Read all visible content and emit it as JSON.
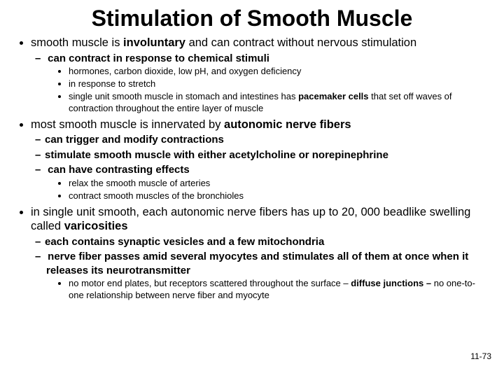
{
  "title": "Stimulation of Smooth Muscle",
  "page_number": "11-73",
  "colors": {
    "background": "#ffffff",
    "text": "#000000"
  },
  "typography": {
    "title_fontsize_pt": 24,
    "lvl1_fontsize_pt": 12,
    "lvl2_fontsize_pt": 11,
    "lvl3_fontsize_pt": 10,
    "font_family": "Arial"
  },
  "b1": {
    "pre": "smooth muscle is ",
    "bold": "involuntary",
    "post": " and can contract without nervous stimulation",
    "s1": "can contract in response to chemical stimuli",
    "s1a": "hormones, carbon dioxide, low pH, and oxygen deficiency",
    "s1b": "in response to stretch",
    "s1c_pre": "single unit smooth muscle in stomach and intestines has ",
    "s1c_bold": "pacemaker cells",
    "s1c_post": " that set off waves of contraction throughout the entire layer of muscle"
  },
  "b2": {
    "pre": "most smooth muscle is innervated by ",
    "bold": "autonomic nerve fibers",
    "s1": "can trigger and modify contractions",
    "s2": "stimulate smooth muscle with either acetylcholine or norepinephrine",
    "s3": "can have contrasting effects",
    "s3a": "relax the smooth muscle of arteries",
    "s3b": "contract smooth muscles of the bronchioles"
  },
  "b3": {
    "pre": "in single unit smooth, each autonomic nerve fibers has up to 20, 000 beadlike swelling called ",
    "bold": "varicosities",
    "s1": "each contains synaptic vesicles and a few mitochondria",
    "s2": "nerve fiber passes amid several myocytes and stimulates all of them at once when it releases its neurotransmitter",
    "s2a_pre": "no motor end plates, but receptors scattered throughout the surface – ",
    "s2a_bold": "diffuse junctions – ",
    "s2a_post": "no one-to-one relationship between nerve fiber and myocyte"
  }
}
